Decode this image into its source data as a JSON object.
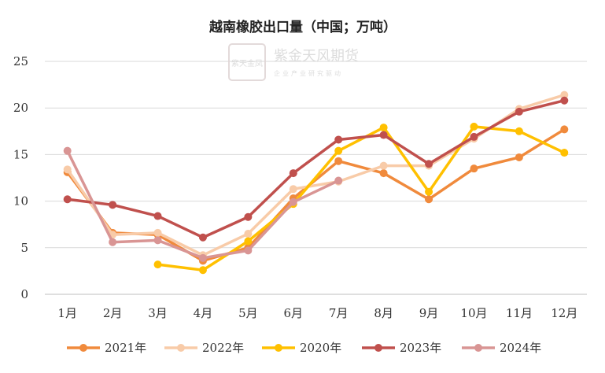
{
  "chart_data": {
    "type": "line",
    "title": "越南橡胶出口量（中国；万吨）",
    "categories": [
      "1月",
      "2月",
      "3月",
      "4月",
      "5月",
      "6月",
      "7月",
      "8月",
      "9月",
      "10月",
      "11月",
      "12月"
    ],
    "ylim": [
      0,
      25
    ],
    "yticks": [
      0,
      5,
      10,
      15,
      20,
      25
    ],
    "grid": true,
    "legend_position": "bottom",
    "series": [
      {
        "name": "2021年",
        "color": "#f08a3c",
        "values": [
          13.1,
          6.6,
          6.4,
          3.6,
          5.0,
          10.3,
          14.3,
          13.0,
          10.2,
          13.5,
          14.7,
          17.7
        ]
      },
      {
        "name": "2022年",
        "color": "#f8cba8",
        "values": [
          13.4,
          6.4,
          6.6,
          4.2,
          6.5,
          11.3,
          12.1,
          13.8,
          13.8,
          16.7,
          19.9,
          21.4
        ]
      },
      {
        "name": "2020年",
        "color": "#ffc000",
        "values": [
          null,
          null,
          3.2,
          2.6,
          5.7,
          9.7,
          15.4,
          17.9,
          11.0,
          18.0,
          17.5,
          15.2
        ]
      },
      {
        "name": "2023年",
        "color": "#c0504d",
        "values": [
          10.2,
          9.6,
          8.4,
          6.1,
          8.3,
          13.0,
          16.6,
          17.1,
          14.0,
          16.9,
          19.6,
          20.8
        ]
      },
      {
        "name": "2024年",
        "color": "#d99594",
        "values": [
          15.4,
          5.6,
          5.8,
          3.9,
          4.7,
          9.9,
          12.2,
          null,
          null,
          null,
          null,
          null
        ]
      }
    ]
  },
  "watermark": {
    "seal_text": "紫天金凤",
    "brand": "紫金天风期货",
    "slogan": "企业产业研究驱动"
  }
}
